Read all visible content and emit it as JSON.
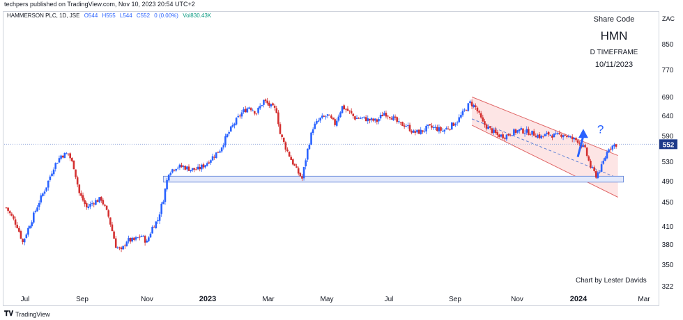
{
  "header": {
    "publisher": "techpers published on TradingView.com, Nov 10, 2023 20:54 UTC+2"
  },
  "symbol": {
    "name": "HAMMERSON PLC, 1D, JSE",
    "open": "O544",
    "high": "H555",
    "low": "L544",
    "close": "C552",
    "change": "0 (0.00%)",
    "volume": "Vol830.43K"
  },
  "info": {
    "line1": "Share Code",
    "line2": "HMN",
    "line3": "D TIMEFRAME",
    "line4": "10/11/2023"
  },
  "credit": "Chart by Lester Davids",
  "currency": "ZAC",
  "footer": {
    "brand": "TradingView"
  },
  "colors": {
    "up": "#2962ff",
    "down": "#d32f2f",
    "channel_fill": "#fde0e0",
    "support": "#5b7fd6",
    "price_badge": "#1e3a8a"
  },
  "chart_data": {
    "type": "candlestick",
    "x_unit": "trading days from first visible bar",
    "y_scale": "log",
    "ylim": [
      315,
      930
    ],
    "y_ticks": [
      322,
      350,
      380,
      410,
      450,
      490,
      530,
      590,
      640,
      690,
      770,
      850
    ],
    "x_ticks": [
      {
        "label": "Jul",
        "bold": false
      },
      {
        "label": "Sep",
        "bold": false
      },
      {
        "label": "Nov",
        "bold": false
      },
      {
        "label": "2023",
        "bold": true
      },
      {
        "label": "Mar",
        "bold": false
      },
      {
        "label": "May",
        "bold": false
      },
      {
        "label": "Jul",
        "bold": false
      },
      {
        "label": "Sep",
        "bold": false
      },
      {
        "label": "Nov",
        "bold": false
      },
      {
        "label": "2024",
        "bold": true
      },
      {
        "label": "Mar",
        "bold": false
      }
    ],
    "last_price": "552",
    "annotation": "?",
    "anchors": [
      [
        0,
        430
      ],
      [
        6,
        400
      ],
      [
        9,
        375
      ],
      [
        14,
        410
      ],
      [
        18,
        440
      ],
      [
        22,
        468
      ],
      [
        26,
        505
      ],
      [
        30,
        528
      ],
      [
        34,
        532
      ],
      [
        37,
        505
      ],
      [
        40,
        455
      ],
      [
        44,
        430
      ],
      [
        48,
        440
      ],
      [
        52,
        445
      ],
      [
        56,
        415
      ],
      [
        60,
        370
      ],
      [
        63,
        362
      ],
      [
        66,
        378
      ],
      [
        70,
        378
      ],
      [
        74,
        385
      ],
      [
        77,
        375
      ],
      [
        80,
        398
      ],
      [
        83,
        410
      ],
      [
        86,
        445
      ],
      [
        89,
        495
      ],
      [
        93,
        505
      ],
      [
        97,
        505
      ],
      [
        101,
        500
      ],
      [
        105,
        500
      ],
      [
        109,
        510
      ],
      [
        113,
        525
      ],
      [
        117,
        540
      ],
      [
        121,
        572
      ],
      [
        125,
        600
      ],
      [
        129,
        625
      ],
      [
        133,
        640
      ],
      [
        137,
        625
      ],
      [
        141,
        655
      ],
      [
        145,
        640
      ],
      [
        148,
        630
      ],
      [
        150,
        575
      ],
      [
        153,
        545
      ],
      [
        156,
        520
      ],
      [
        159,
        498
      ],
      [
        162,
        482
      ],
      [
        165,
        540
      ],
      [
        168,
        590
      ],
      [
        172,
        610
      ],
      [
        176,
        618
      ],
      [
        180,
        598
      ],
      [
        184,
        640
      ],
      [
        187,
        630
      ],
      [
        191,
        612
      ],
      [
        195,
        612
      ],
      [
        199,
        607
      ],
      [
        203,
        605
      ],
      [
        207,
        625
      ],
      [
        211,
        615
      ],
      [
        215,
        598
      ],
      [
        219,
        595
      ],
      [
        223,
        578
      ],
      [
        227,
        580
      ],
      [
        231,
        590
      ],
      [
        235,
        588
      ],
      [
        239,
        582
      ],
      [
        243,
        592
      ],
      [
        247,
        605
      ],
      [
        251,
        630
      ],
      [
        254,
        650
      ],
      [
        257,
        638
      ],
      [
        261,
        600
      ],
      [
        265,
        585
      ],
      [
        269,
        572
      ],
      [
        273,
        570
      ],
      [
        277,
        578
      ],
      [
        281,
        583
      ],
      [
        285,
        580
      ],
      [
        289,
        575
      ],
      [
        293,
        568
      ],
      [
        297,
        575
      ],
      [
        301,
        570
      ],
      [
        305,
        575
      ],
      [
        309,
        565
      ],
      [
        313,
        560
      ],
      [
        317,
        540
      ],
      [
        320,
        505
      ],
      [
        323,
        488
      ],
      [
        326,
        505
      ],
      [
        330,
        545
      ],
      [
        334,
        552
      ]
    ],
    "annotations": {
      "channel": {
        "x": [
          255,
          335
        ],
        "upper": [
          665,
          528
        ],
        "lower": [
          595,
          448
        ]
      },
      "midline": {
        "x": [
          255,
          335
        ],
        "y": [
          610,
          483
        ]
      },
      "support": {
        "x": [
          86,
          338
        ],
        "y": [
          484,
          478
        ]
      },
      "arrow": {
        "x": [
          313,
          316
        ],
        "y": [
          525,
          580
        ]
      }
    }
  }
}
